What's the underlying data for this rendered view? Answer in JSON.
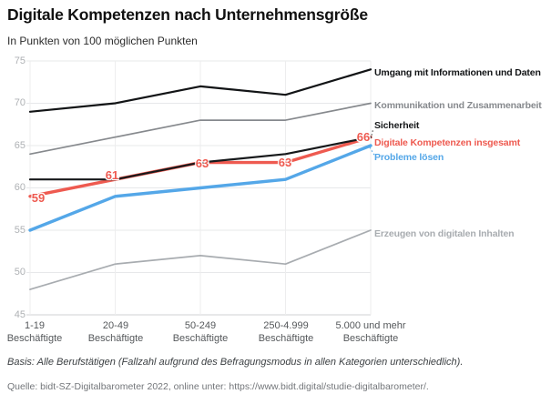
{
  "chart_data": {
    "type": "line",
    "title": "Digitale Kompetenzen nach Unternehmensgröße",
    "subtitle": "In Punkten von 100 möglichen Punkten",
    "categories": [
      "1-19 Beschäftigte",
      "20-49 Beschäftigte",
      "50-249 Beschäftigte",
      "250-4.999 Beschäftigte",
      "5.000 und mehr Beschäftigte"
    ],
    "xlabels_top": [
      "1-19",
      "20-49",
      "50-249",
      "250-4.999",
      "5.000 und mehr"
    ],
    "xlabel_bottom": "Beschäftigte",
    "yticks": [
      75,
      70,
      65,
      60,
      55,
      50,
      45
    ],
    "ylim": [
      45,
      75
    ],
    "grid": true,
    "legend_position": "right",
    "series": [
      {
        "name": "Umgang mit Informationen und Daten",
        "color": "#121416",
        "width": 2.2,
        "values": [
          69,
          70,
          72,
          71,
          74
        ]
      },
      {
        "name": "Kommunikation und Zusammenarbeit",
        "color": "#86898d",
        "width": 1.7,
        "values": [
          64,
          66,
          68,
          68,
          70
        ]
      },
      {
        "name": "Sicherheit",
        "color": "#17191b",
        "width": 2.2,
        "values": [
          61,
          61,
          63,
          64,
          66
        ]
      },
      {
        "name": "Digitale Kompetenzen insgesamt",
        "color": "#ee5a50",
        "width": 3.4,
        "values": [
          59,
          61,
          63,
          63,
          66
        ]
      },
      {
        "name": "Probleme lösen",
        "color": "#54a7e8",
        "width": 3.4,
        "values": [
          55,
          59,
          60,
          61,
          65
        ]
      },
      {
        "name": "Erzeugen von digitalen Inhalten",
        "color": "#a8acb0",
        "width": 1.7,
        "values": [
          48,
          51,
          52,
          51,
          55
        ]
      }
    ]
  },
  "footer": {
    "basis": "Basis: Alle Berufstätigen (Fallzahl aufgrund des Befragungsmodus in allen Kategorien unterschiedlich).",
    "source": "Quelle: bidt-SZ-Digitalbarometer 2022, online unter: https://www.bidt.digital/studie-digitalbarometer/."
  }
}
